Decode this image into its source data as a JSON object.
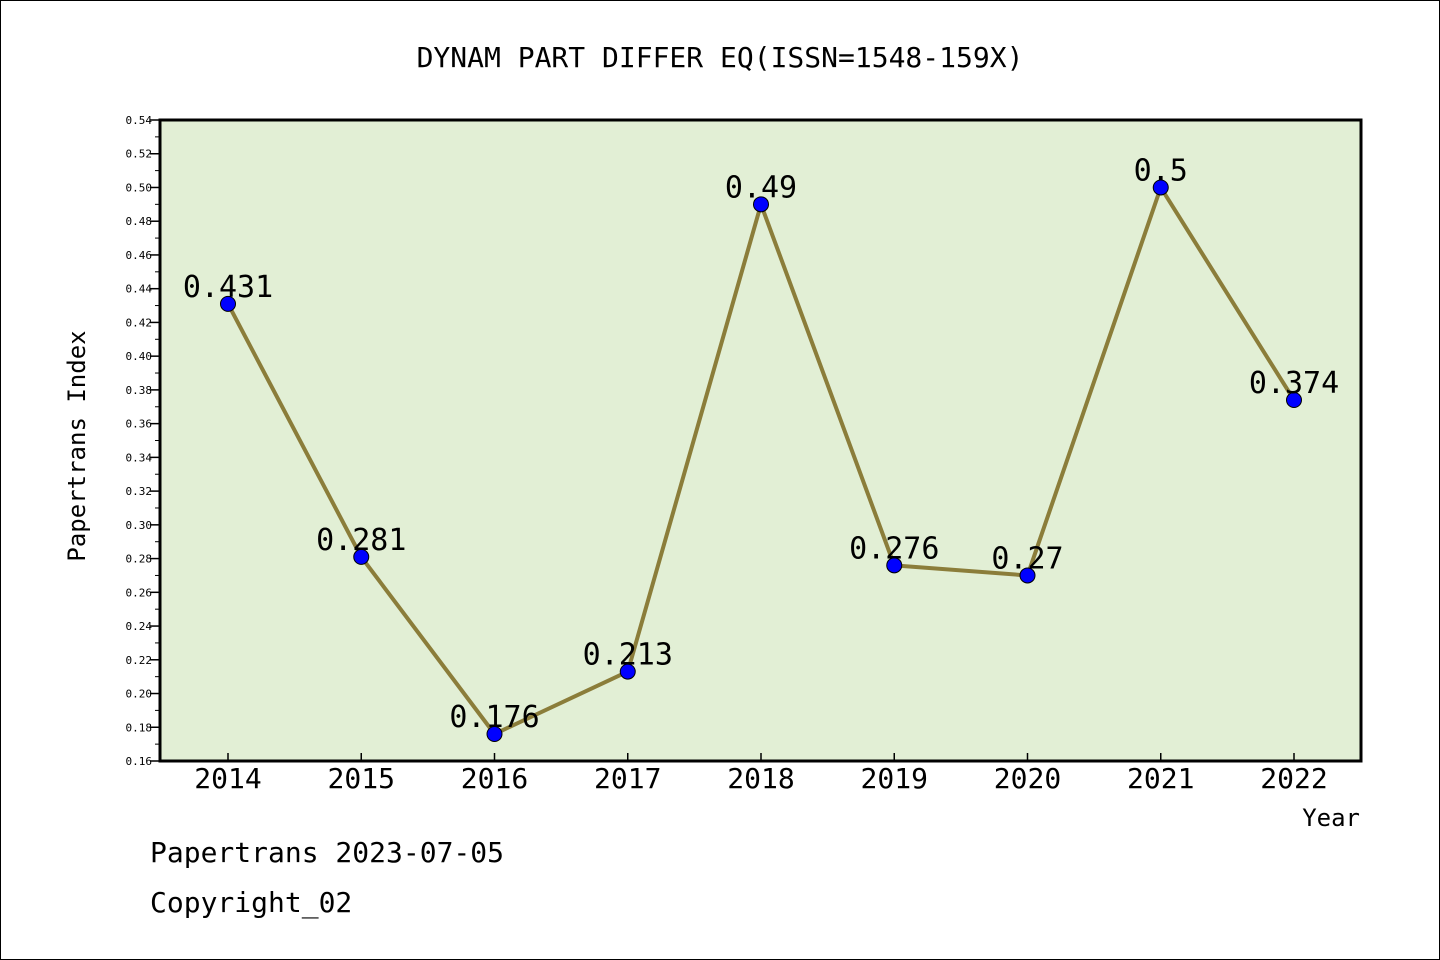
{
  "chart_data": {
    "type": "line",
    "title": "DYNAM PART DIFFER EQ(ISSN=1548-159X)",
    "xlabel": "Year",
    "ylabel": "Papertrans Index",
    "categories": [
      "2014",
      "2015",
      "2016",
      "2017",
      "2018",
      "2019",
      "2020",
      "2021",
      "2022"
    ],
    "series": [
      {
        "values": [
          0.431,
          0.281,
          0.176,
          0.213,
          0.49,
          0.276,
          0.27,
          0.5,
          0.374
        ],
        "labels": [
          "0.431",
          "0.281",
          "0.176",
          "0.213",
          "0.49",
          "0.276",
          "0.27",
          "0.5",
          "0.374"
        ]
      }
    ],
    "ylim": [
      0.16,
      0.54
    ],
    "yticks": [
      "0.16",
      "0.18",
      "0.20",
      "0.22",
      "0.24",
      "0.26",
      "0.28",
      "0.30",
      "0.32",
      "0.34",
      "0.36",
      "0.38",
      "0.40",
      "0.42",
      "0.44",
      "0.46",
      "0.48",
      "0.50",
      "0.52",
      "0.54"
    ],
    "grid": false,
    "colors": {
      "plot_background": "#e2efd5",
      "line": "#8b7d3a",
      "marker": "#0000ff"
    }
  },
  "footer": {
    "date_text": "Papertrans 2023-07-05",
    "copyright_text": "Copyright_02"
  }
}
